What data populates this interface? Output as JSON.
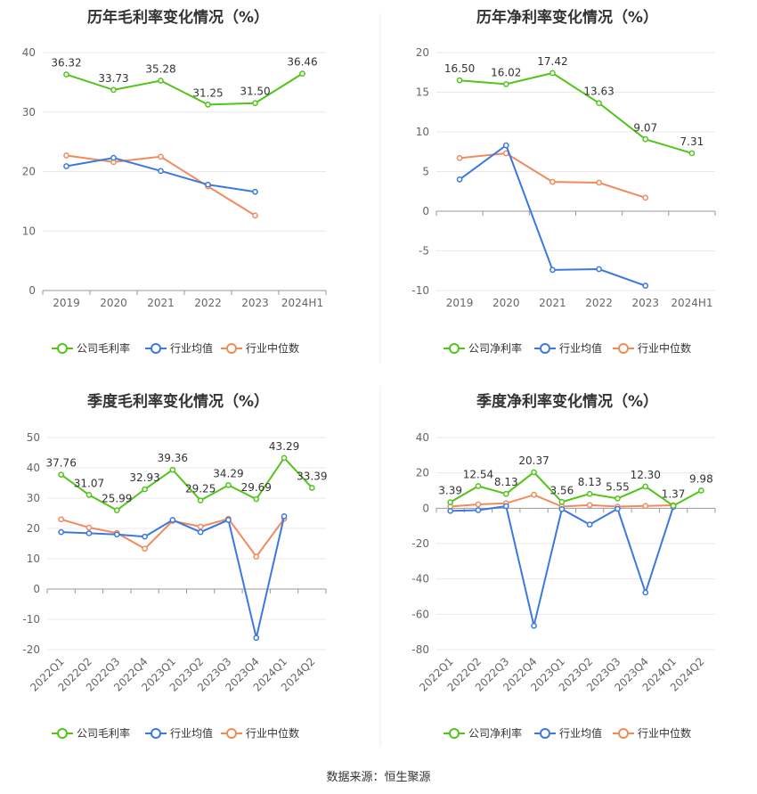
{
  "footer": {
    "source": "数据来源：恒生聚源"
  },
  "colors": {
    "company": "#52c41a",
    "industry_avg": "#3b78e0",
    "industry_median": "#f08b5e"
  },
  "chart_data": [
    {
      "type": "line",
      "title": "历年毛利率变化情况（%）",
      "categories": [
        "2019",
        "2020",
        "2021",
        "2022",
        "2023",
        "2024H1"
      ],
      "ylim": [
        0,
        40
      ],
      "yticks": [
        0,
        10,
        20,
        30,
        40
      ],
      "grid": true,
      "legend": "bottom",
      "series": [
        {
          "name": "公司毛利率",
          "key": "company",
          "values": [
            36.32,
            33.73,
            35.28,
            31.25,
            31.5,
            36.46
          ],
          "labels": [
            "36.32",
            "33.73",
            "35.28",
            "31.25",
            "31.50",
            "36.46"
          ]
        },
        {
          "name": "行业均值",
          "key": "industry_avg",
          "values": [
            20.9,
            22.3,
            20.1,
            17.8,
            16.6,
            null
          ]
        },
        {
          "name": "行业中位数",
          "key": "industry_median",
          "values": [
            22.7,
            21.6,
            22.5,
            17.5,
            12.6,
            null
          ]
        }
      ]
    },
    {
      "type": "line",
      "title": "历年净利率变化情况（%）",
      "categories": [
        "2019",
        "2020",
        "2021",
        "2022",
        "2023",
        "2024H1"
      ],
      "ylim": [
        -10,
        20
      ],
      "yticks": [
        -10,
        -5,
        0,
        5,
        10,
        15,
        20
      ],
      "grid": true,
      "legend": "bottom",
      "series": [
        {
          "name": "公司净利率",
          "key": "company",
          "values": [
            16.5,
            16.02,
            17.42,
            13.63,
            9.07,
            7.31
          ],
          "labels": [
            "16.50",
            "16.02",
            "17.42",
            "13.63",
            "9.07",
            "7.31"
          ]
        },
        {
          "name": "行业均值",
          "key": "industry_avg",
          "values": [
            4.0,
            8.3,
            -7.4,
            -7.3,
            -9.4,
            null
          ]
        },
        {
          "name": "行业中位数",
          "key": "industry_median",
          "values": [
            6.7,
            7.3,
            3.7,
            3.6,
            1.7,
            null
          ]
        }
      ]
    },
    {
      "type": "line",
      "title": "季度毛利率变化情况（%）",
      "categories": [
        "2022Q1",
        "2022Q2",
        "2022Q3",
        "2022Q4",
        "2023Q1",
        "2023Q2",
        "2023Q3",
        "2023Q4",
        "2024Q1",
        "2024Q2"
      ],
      "ylim": [
        -20,
        50
      ],
      "yticks": [
        -20,
        -10,
        0,
        10,
        20,
        30,
        40,
        50
      ],
      "grid": true,
      "legend": "bottom",
      "series": [
        {
          "name": "公司毛利率",
          "key": "company",
          "values": [
            37.76,
            31.07,
            25.99,
            32.93,
            39.36,
            29.25,
            34.29,
            29.69,
            43.29,
            33.39
          ],
          "labels": [
            "37.76",
            "31.07",
            "25.99",
            "32.93",
            "39.36",
            "29.25",
            "34.29",
            "29.69",
            "43.29",
            "33.39"
          ]
        },
        {
          "name": "行业均值",
          "key": "industry_avg",
          "values": [
            18.8,
            18.4,
            18.0,
            17.3,
            22.8,
            18.8,
            22.8,
            -16.1,
            24.0,
            null
          ]
        },
        {
          "name": "行业中位数",
          "key": "industry_median",
          "values": [
            23.0,
            20.3,
            18.5,
            13.3,
            22.5,
            20.6,
            23.2,
            10.7,
            23.2,
            null
          ]
        }
      ]
    },
    {
      "type": "line",
      "title": "季度净利率变化情况（%）",
      "categories": [
        "2022Q1",
        "2022Q2",
        "2022Q3",
        "2022Q4",
        "2023Q1",
        "2023Q2",
        "2023Q3",
        "2023Q4",
        "2024Q1",
        "2024Q2"
      ],
      "ylim": [
        -80,
        40
      ],
      "yticks": [
        -80,
        -60,
        -40,
        -20,
        0,
        20,
        40
      ],
      "grid": true,
      "legend": "bottom",
      "series": [
        {
          "name": "公司净利率",
          "key": "company",
          "values": [
            3.39,
            12.54,
            8.13,
            20.37,
            3.56,
            8.13,
            5.55,
            12.3,
            1.37,
            9.98
          ],
          "labels": [
            "3.39",
            "12.54",
            "8.13",
            "20.37",
            "3.56",
            "8.13",
            "5.55",
            "12.30",
            "1.37",
            "9.98"
          ]
        },
        {
          "name": "行业均值",
          "key": "industry_avg",
          "values": [
            -1.5,
            -1.1,
            1.2,
            -66.5,
            -0.5,
            -9.2,
            -0.3,
            -47.7,
            0.8,
            null
          ]
        },
        {
          "name": "行业中位数",
          "key": "industry_median",
          "values": [
            1.0,
            2.2,
            2.8,
            7.6,
            1.0,
            1.8,
            0.9,
            1.3,
            1.7,
            null
          ]
        }
      ]
    }
  ]
}
